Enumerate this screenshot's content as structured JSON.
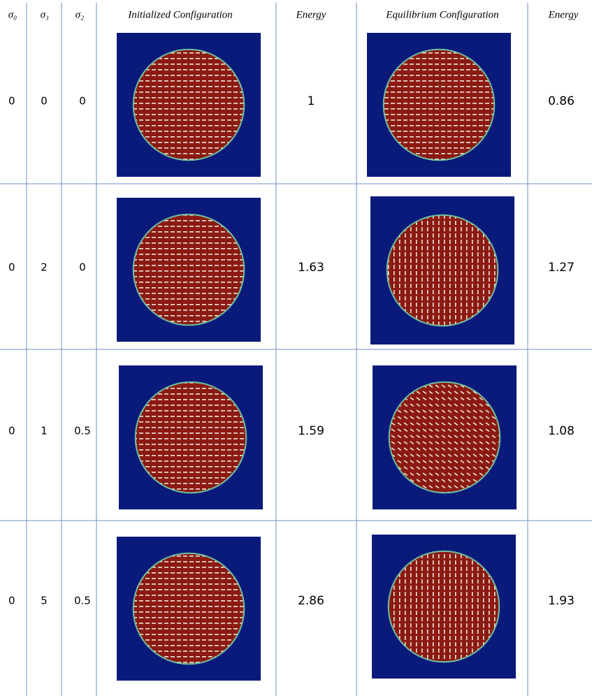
{
  "table": {
    "headers": [
      "σ₀",
      "σ₁",
      "σ₂",
      "Initialized Configuration",
      "Energy",
      "Equilibrium Configuration",
      "Energy"
    ],
    "rows": [
      [
        0,
        0,
        0,
        1,
        0.86
      ],
      [
        0,
        2,
        0,
        1.63,
        1.27
      ],
      [
        0,
        1,
        0.5,
        1.59,
        1.08
      ],
      [
        0,
        5,
        0.5,
        2.86,
        1.93
      ]
    ]
  }
}
